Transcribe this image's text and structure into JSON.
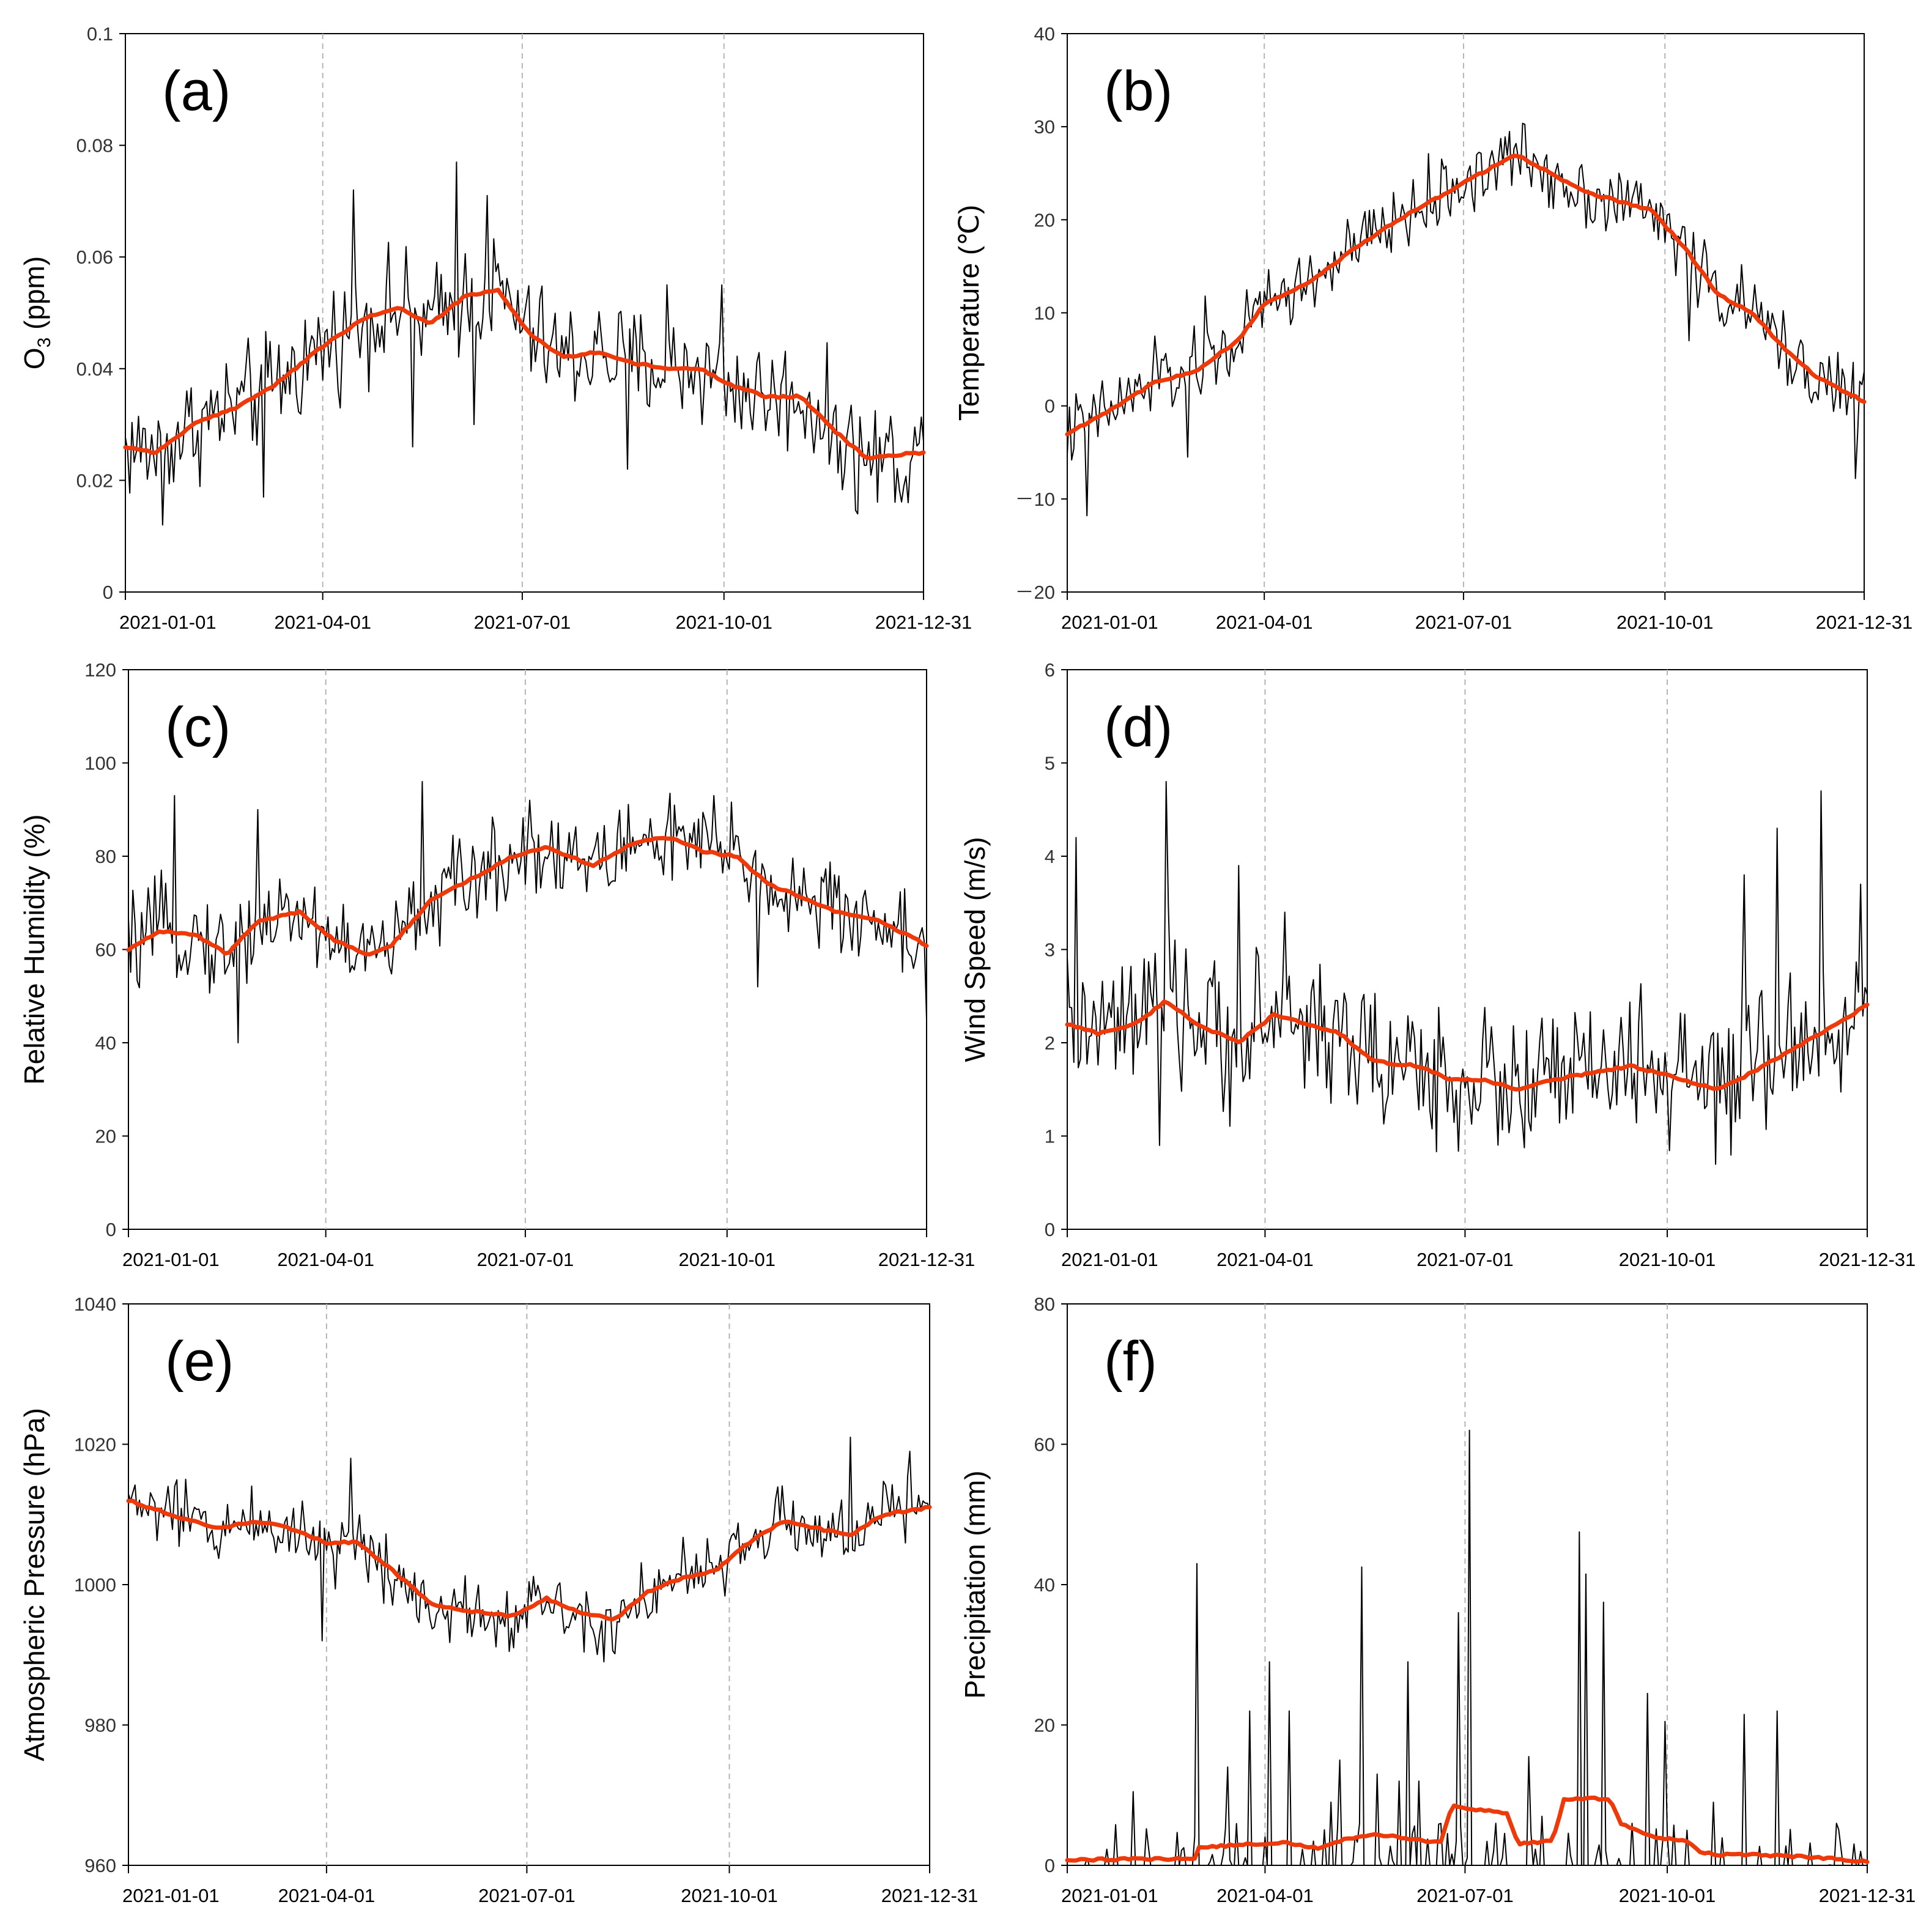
{
  "colors": {
    "raw": "#000000",
    "smooth": "#ee3a0a",
    "grid": "#b5b5b5",
    "axis": "#000000"
  },
  "chart_data": [
    {
      "type": "line",
      "panel_label": "(a)",
      "ylabel": "O3 (ppm)",
      "ylabel_main": "O",
      "ylabel_sub": "3",
      "ylabel_rest": " (ppm)",
      "ylim": [
        0,
        0.1
      ],
      "yticks": [
        0,
        0.02,
        0.04,
        0.06,
        0.08,
        0.1
      ],
      "ytick_labels": [
        "0",
        "0.02",
        "0.04",
        "0.06",
        "0.08",
        "0.1"
      ],
      "xrange": [
        "2021-01-01",
        "2021-12-31"
      ],
      "xticks": [
        "2021-01-01",
        "2021-04-01",
        "2021-07-01",
        "2021-10-01",
        "2021-12-31"
      ],
      "xtick_labels": [
        "2021-01-01",
        "2021-04-01",
        "2021-07-01",
        "2021-10-01",
        "2021-12-31"
      ],
      "vertical_dashed_lines": [
        "2021-04-01",
        "2021-07-01",
        "2021-10-01"
      ],
      "series": [
        {
          "style": "daily-thin-black",
          "noise": 0.009,
          "spikes": [
            [
              "2021-01-18",
              0.012
            ],
            [
              "2021-03-05",
              0.017
            ],
            [
              "2021-04-15",
              0.072
            ],
            [
              "2021-05-12",
              0.026
            ],
            [
              "2021-06-01",
              0.077
            ],
            [
              "2021-06-15",
              0.071
            ],
            [
              "2021-06-09",
              0.03
            ],
            [
              "2021-08-18",
              0.022
            ],
            [
              "2021-09-05",
              0.055
            ],
            [
              "2021-09-30",
              0.055
            ],
            [
              "2021-12-01",
              0.014
            ],
            [
              "2021-12-24",
              0.016
            ]
          ]
        },
        {
          "style": "smooth-thick-red",
          "x": [
            "2021-01-01",
            "2021-01-15",
            "2021-02-01",
            "2021-02-20",
            "2021-03-10",
            "2021-04-01",
            "2021-04-20",
            "2021-05-05",
            "2021-05-20",
            "2021-06-05",
            "2021-06-20",
            "2021-07-05",
            "2021-07-20",
            "2021-08-05",
            "2021-08-20",
            "2021-09-05",
            "2021-09-20",
            "2021-10-05",
            "2021-10-20",
            "2021-11-05",
            "2021-11-20",
            "2021-12-05",
            "2021-12-31"
          ],
          "values": [
            0.026,
            0.025,
            0.03,
            0.033,
            0.037,
            0.044,
            0.049,
            0.051,
            0.048,
            0.053,
            0.054,
            0.046,
            0.042,
            0.043,
            0.041,
            0.04,
            0.04,
            0.037,
            0.035,
            0.035,
            0.029,
            0.024,
            0.025
          ]
        }
      ]
    },
    {
      "type": "line",
      "panel_label": "(b)",
      "ylabel": "Temperature  (℃)",
      "ylim": [
        -20,
        40
      ],
      "yticks": [
        -20,
        -10,
        0,
        10,
        20,
        30,
        40
      ],
      "ytick_labels": [
        "－20",
        "－10",
        "0",
        "10",
        "20",
        "30",
        "40"
      ],
      "xrange": [
        "2021-01-01",
        "2021-12-31"
      ],
      "xticks": [
        "2021-01-01",
        "2021-04-01",
        "2021-07-01",
        "2021-10-01",
        "2021-12-31"
      ],
      "xtick_labels": [
        "2021-01-01",
        "2021-04-01",
        "2021-07-01",
        "2021-10-01",
        "2021-12-31"
      ],
      "vertical_dashed_lines": [
        "2021-04-01",
        "2021-07-01",
        "2021-10-01"
      ],
      "series": [
        {
          "style": "daily-thin-black",
          "noise": 3.5,
          "spikes": [
            [
              "2021-01-10",
              -11.8
            ],
            [
              "2021-02-10",
              7.5
            ],
            [
              "2021-02-25",
              -5.5
            ],
            [
              "2021-03-05",
              11.8
            ],
            [
              "2021-07-25",
              28.2
            ],
            [
              "2021-10-12",
              7
            ],
            [
              "2021-12-27",
              -7.8
            ]
          ]
        },
        {
          "style": "smooth-thick-red",
          "x": [
            "2021-01-01",
            "2021-01-20",
            "2021-02-10",
            "2021-03-01",
            "2021-03-20",
            "2021-04-01",
            "2021-04-20",
            "2021-05-10",
            "2021-06-01",
            "2021-06-20",
            "2021-07-05",
            "2021-07-25",
            "2021-08-10",
            "2021-08-25",
            "2021-09-10",
            "2021-09-25",
            "2021-10-10",
            "2021-10-25",
            "2021-11-10",
            "2021-11-25",
            "2021-12-10",
            "2021-12-31"
          ],
          "values": [
            -3,
            -0.5,
            2.5,
            3.8,
            7,
            11,
            13,
            16.5,
            20,
            22.5,
            24.5,
            27,
            25,
            23,
            22,
            21,
            17,
            12,
            10,
            6,
            3,
            0.5
          ]
        }
      ]
    },
    {
      "type": "line",
      "panel_label": "(c)",
      "ylabel": "Relative  Humidity  (%)",
      "ylim": [
        0,
        120
      ],
      "yticks": [
        0,
        20,
        40,
        60,
        80,
        100,
        120
      ],
      "ytick_labels": [
        "0",
        "20",
        "40",
        "60",
        "80",
        "100",
        "120"
      ],
      "xrange": [
        "2021-01-01",
        "2021-12-31"
      ],
      "xticks": [
        "2021-01-01",
        "2021-04-01",
        "2021-07-01",
        "2021-10-01",
        "2021-12-31"
      ],
      "xtick_labels": [
        "2021-01-01",
        "2021-04-01",
        "2021-07-01",
        "2021-10-01",
        "2021-12-31"
      ],
      "vertical_dashed_lines": [
        "2021-04-01",
        "2021-07-01",
        "2021-10-01"
      ],
      "series": [
        {
          "style": "daily-thin-black",
          "noise": 9,
          "spikes": [
            [
              "2021-01-22",
              93
            ],
            [
              "2021-02-20",
              40
            ],
            [
              "2021-03-01",
              90
            ],
            [
              "2021-05-15",
              96
            ],
            [
              "2021-07-03",
              92
            ],
            [
              "2021-09-25",
              93
            ],
            [
              "2021-10-15",
              52
            ],
            [
              "2021-12-31",
              45
            ]
          ]
        },
        {
          "style": "smooth-thick-red",
          "x": [
            "2021-01-01",
            "2021-01-15",
            "2021-02-01",
            "2021-02-15",
            "2021-03-01",
            "2021-03-20",
            "2021-04-05",
            "2021-04-20",
            "2021-05-01",
            "2021-05-20",
            "2021-06-10",
            "2021-06-25",
            "2021-07-10",
            "2021-08-01",
            "2021-08-20",
            "2021-09-05",
            "2021-09-20",
            "2021-10-05",
            "2021-10-20",
            "2021-11-05",
            "2021-11-20",
            "2021-12-10",
            "2021-12-31"
          ],
          "values": [
            60,
            64,
            63,
            59,
            66,
            68,
            62,
            59,
            61,
            71,
            76,
            80,
            82,
            78,
            83,
            84,
            81,
            80,
            74,
            71,
            68,
            66,
            61
          ]
        }
      ]
    },
    {
      "type": "line",
      "panel_label": "(d)",
      "ylabel": "Wind  Speed  (m/s)",
      "ylim": [
        0,
        6
      ],
      "yticks": [
        0,
        1,
        2,
        3,
        4,
        5,
        6
      ],
      "ytick_labels": [
        "0",
        "1",
        "2",
        "3",
        "4",
        "5",
        "6"
      ],
      "xrange": [
        "2021-01-01",
        "2021-12-31"
      ],
      "xticks": [
        "2021-01-01",
        "2021-04-01",
        "2021-07-01",
        "2021-10-01",
        "2021-12-31"
      ],
      "xtick_labels": [
        "2021-01-01",
        "2021-04-01",
        "2021-07-01",
        "2021-10-01",
        "2021-12-31"
      ],
      "vertical_dashed_lines": [
        "2021-04-01",
        "2021-07-01",
        "2021-10-01"
      ],
      "series": [
        {
          "style": "daily-thin-black",
          "noise": 0.7,
          "spikes": [
            [
              "2021-01-05",
              4.2
            ],
            [
              "2021-02-12",
              0.9
            ],
            [
              "2021-02-15",
              4.8
            ],
            [
              "2021-03-20",
              3.9
            ],
            [
              "2021-04-10",
              3.4
            ],
            [
              "2021-11-05",
              3.8
            ],
            [
              "2021-11-20",
              4.3
            ],
            [
              "2021-12-10",
              4.7
            ],
            [
              "2021-12-28",
              3.7
            ]
          ]
        },
        {
          "style": "smooth-thick-red",
          "x": [
            "2021-01-01",
            "2021-01-15",
            "2021-02-01",
            "2021-02-15",
            "2021-03-01",
            "2021-03-20",
            "2021-04-05",
            "2021-04-20",
            "2021-05-05",
            "2021-05-20",
            "2021-06-10",
            "2021-06-25",
            "2021-07-10",
            "2021-07-25",
            "2021-08-10",
            "2021-09-01",
            "2021-09-15",
            "2021-10-01",
            "2021-10-15",
            "2021-10-25",
            "2021-11-10",
            "2021-11-25",
            "2021-12-10",
            "2021-12-31"
          ],
          "values": [
            2.2,
            2.1,
            2.2,
            2.45,
            2.2,
            2.0,
            2.3,
            2.2,
            2.1,
            1.8,
            1.75,
            1.6,
            1.6,
            1.5,
            1.6,
            1.7,
            1.75,
            1.65,
            1.55,
            1.5,
            1.7,
            1.9,
            2.1,
            2.4
          ]
        }
      ]
    },
    {
      "type": "line",
      "panel_label": "(e)",
      "ylabel": "Atmospheric  Pressure (hPa)",
      "ylim": [
        960,
        1040
      ],
      "yticks": [
        960,
        980,
        1000,
        1020,
        1040
      ],
      "ytick_labels": [
        "960",
        "980",
        "1000",
        "1020",
        "1040"
      ],
      "xrange": [
        "2021-01-01",
        "2021-12-31"
      ],
      "xticks": [
        "2021-01-01",
        "2021-04-01",
        "2021-07-01",
        "2021-10-01",
        "2021-12-31"
      ],
      "xtick_labels": [
        "2021-01-01",
        "2021-04-01",
        "2021-07-01",
        "2021-10-01",
        "2021-12-31"
      ],
      "vertical_dashed_lines": [
        "2021-04-01",
        "2021-07-01",
        "2021-10-01"
      ],
      "series": [
        {
          "style": "daily-thin-black",
          "noise": 4.5,
          "spikes": [
            [
              "2021-03-30",
              992
            ],
            [
              "2021-04-12",
              1018
            ],
            [
              "2021-08-05",
              989
            ],
            [
              "2021-11-25",
              1021
            ],
            [
              "2021-12-22",
              1019
            ]
          ]
        },
        {
          "style": "smooth-thick-red",
          "x": [
            "2021-01-01",
            "2021-01-20",
            "2021-02-10",
            "2021-03-01",
            "2021-03-15",
            "2021-04-01",
            "2021-04-15",
            "2021-05-01",
            "2021-05-20",
            "2021-06-10",
            "2021-06-25",
            "2021-07-10",
            "2021-07-25",
            "2021-08-10",
            "2021-08-25",
            "2021-09-10",
            "2021-09-25",
            "2021-10-10",
            "2021-10-25",
            "2021-11-10",
            "2021-11-25",
            "2021-12-10",
            "2021-12-31"
          ],
          "values": [
            1012,
            1010,
            1008,
            1009,
            1008,
            1006,
            1006,
            1002,
            997,
            996,
            995.5,
            998,
            996,
            995,
            999,
            1001,
            1002,
            1006,
            1009,
            1008,
            1007,
            1010,
            1011
          ]
        }
      ]
    },
    {
      "type": "line",
      "panel_label": "(f)",
      "ylabel": "Precipitation  (mm)",
      "ylim": [
        0,
        80
      ],
      "yticks": [
        0,
        20,
        40,
        60,
        80
      ],
      "ytick_labels": [
        "0",
        "20",
        "40",
        "60",
        "80"
      ],
      "xrange": [
        "2021-01-01",
        "2021-12-31"
      ],
      "xticks": [
        "2021-01-01",
        "2021-04-01",
        "2021-07-01",
        "2021-10-01",
        "2021-12-31"
      ],
      "xtick_labels": [
        "2021-01-01",
        "2021-04-01",
        "2021-07-01",
        "2021-10-01",
        "2021-12-31"
      ],
      "vertical_dashed_lines": [
        "2021-04-01",
        "2021-07-01",
        "2021-10-01"
      ],
      "series": [
        {
          "style": "daily-bars-black",
          "events": [
            [
              "2021-01-10",
              1
            ],
            [
              "2021-01-31",
              10.5
            ],
            [
              "2021-03-01",
              43
            ],
            [
              "2021-03-15",
              14
            ],
            [
              "2021-03-25",
              22
            ],
            [
              "2021-04-03",
              29
            ],
            [
              "2021-04-12",
              22
            ],
            [
              "2021-05-01",
              9
            ],
            [
              "2021-05-05",
              15
            ],
            [
              "2021-05-15",
              42.5
            ],
            [
              "2021-05-22",
              13
            ],
            [
              "2021-06-01",
              12
            ],
            [
              "2021-06-05",
              29
            ],
            [
              "2021-06-10",
              12
            ],
            [
              "2021-06-28",
              36
            ],
            [
              "2021-07-03",
              62
            ],
            [
              "2021-07-15",
              6
            ],
            [
              "2021-07-30",
              15.5
            ],
            [
              "2021-08-05",
              7
            ],
            [
              "2021-08-22",
              47.5
            ],
            [
              "2021-08-25",
              41.5
            ],
            [
              "2021-09-02",
              37.5
            ],
            [
              "2021-09-15",
              6
            ],
            [
              "2021-09-22",
              24.5
            ],
            [
              "2021-09-30",
              20.5
            ],
            [
              "2021-10-10",
              5
            ],
            [
              "2021-10-22",
              9
            ],
            [
              "2021-11-05",
              21.5
            ],
            [
              "2021-11-20",
              22
            ],
            [
              "2021-12-28",
              2
            ]
          ]
        },
        {
          "style": "smooth-thick-red",
          "x": [
            "2021-01-01",
            "2021-02-10",
            "2021-02-28",
            "2021-03-01",
            "2021-03-25",
            "2021-04-10",
            "2021-04-15",
            "2021-04-25",
            "2021-05-05",
            "2021-05-20",
            "2021-06-05",
            "2021-06-20",
            "2021-06-25",
            "2021-07-05",
            "2021-07-20",
            "2021-07-25",
            "2021-08-10",
            "2021-08-15",
            "2021-09-05",
            "2021-09-10",
            "2021-09-25",
            "2021-10-10",
            "2021-10-15",
            "2021-10-25",
            "2021-11-10",
            "2021-11-25",
            "2021-12-15",
            "2021-12-31"
          ],
          "values": [
            0.8,
            0.9,
            1.0,
            2.5,
            3.0,
            3.3,
            3.0,
            2.5,
            3.5,
            4.5,
            3.8,
            3.2,
            8.5,
            8.0,
            7.5,
            3.0,
            3.5,
            9.5,
            9.5,
            6.0,
            4.0,
            3.5,
            2.0,
            1.5,
            1.5,
            1.3,
            1.0,
            0.5
          ]
        }
      ]
    }
  ]
}
